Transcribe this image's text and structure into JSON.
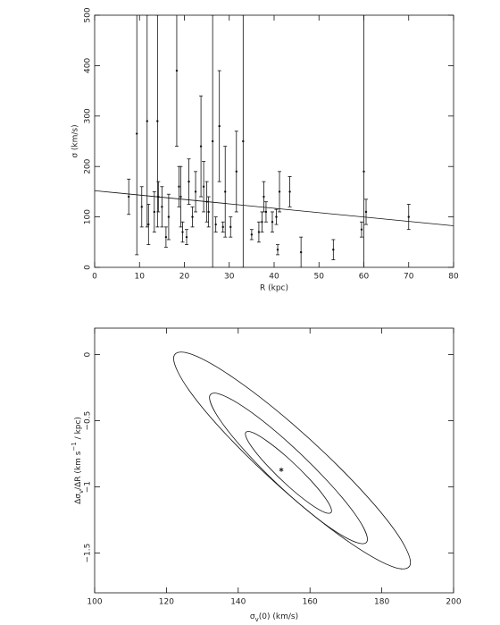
{
  "chart_data": [
    {
      "type": "scatter",
      "x_label": "R (kpc)",
      "y_label": "σ (km/s)",
      "xlim": [
        0,
        80
      ],
      "xticks": [
        0,
        10,
        20,
        30,
        40,
        50,
        60,
        70,
        80
      ],
      "ylim": [
        0,
        500
      ],
      "yticks": [
        0,
        100,
        200,
        300,
        400,
        500
      ],
      "x": [
        7.6,
        9.4,
        10.5,
        11.7,
        12.0,
        13.3,
        14.0,
        14.2,
        15.0,
        15.9,
        16.5,
        18.3,
        18.8,
        19.2,
        19.6,
        20.5,
        21.0,
        21.8,
        22.5,
        23.7,
        24.3,
        25.0,
        25.4,
        26.3,
        27.0,
        27.8,
        28.6,
        29.1,
        30.3,
        31.6,
        33.1,
        35.0,
        36.6,
        37.3,
        37.7,
        38.2,
        39.6,
        40.5,
        40.8,
        41.2,
        43.5,
        46.0,
        53.2,
        59.5,
        60.0,
        60.5,
        70.0
      ],
      "values": [
        140,
        265,
        120,
        290,
        85,
        110,
        290,
        140,
        120,
        60,
        100,
        390,
        160,
        140,
        70,
        60,
        170,
        100,
        150,
        240,
        160,
        130,
        110,
        250,
        85,
        280,
        80,
        150,
        80,
        190,
        250,
        65,
        70,
        90,
        140,
        110,
        90,
        100,
        35,
        150,
        150,
        30,
        35,
        75,
        190,
        110,
        100
      ],
      "errors": [
        35,
        240,
        40,
        210,
        40,
        40,
        210,
        30,
        40,
        20,
        45,
        150,
        40,
        60,
        20,
        15,
        45,
        20,
        40,
        100,
        50,
        40,
        30,
        250,
        15,
        110,
        10,
        90,
        20,
        80,
        250,
        10,
        20,
        20,
        30,
        20,
        20,
        15,
        10,
        40,
        30,
        30,
        20,
        15,
        310,
        25,
        25
      ],
      "fit": {
        "x": [
          0,
          80
        ],
        "values": [
          152,
          82.4
        ]
      }
    },
    {
      "type": "contour",
      "x_label": [
        {
          "text": "σ"
        },
        {
          "text": "v",
          "shift": "sub"
        },
        {
          "text": "(0) (km/s)"
        }
      ],
      "y_label": [
        {
          "text": "Δσ"
        },
        {
          "text": "v",
          "shift": "sub"
        },
        {
          "text": "/ΔR (km s"
        },
        {
          "text": "−1",
          "shift": "super"
        },
        {
          "text": " / kpc)"
        }
      ],
      "xlim": [
        100,
        200
      ],
      "xticks": [
        100,
        120,
        140,
        160,
        180,
        200
      ],
      "ylim": [
        -1.8,
        0.2
      ],
      "yticks": [
        {
          "value": -1.5,
          "label": "−1.5"
        },
        {
          "value": -1,
          "label": "−1"
        },
        {
          "value": -0.5,
          "label": "−0.5"
        },
        0
      ],
      "contours": [
        {
          "x": [
            188,
            183.6,
            171.5,
            155,
            138.5,
            126.4,
            122,
            126.4,
            138.5,
            155,
            171.5,
            183.6
          ],
          "y": [
            -1.571,
            -1.608,
            -1.428,
            -1.08,
            -0.657,
            -0.273,
            -0.029,
            0.008,
            -0.172,
            -0.52,
            -0.943,
            -1.327
          ]
        },
        {
          "x": [
            176,
            173.1,
            165,
            154,
            143,
            134.9,
            132,
            134.9,
            143,
            154,
            165,
            173.1
          ],
          "y": [
            -1.396,
            -1.421,
            -1.297,
            -1.055,
            -0.761,
            -0.493,
            -0.324,
            -0.299,
            -0.423,
            -0.665,
            -0.959,
            -1.227
          ]
        },
        {
          "x": [
            166,
            164.4,
            160,
            154,
            148,
            143.6,
            142,
            143.6,
            148,
            154,
            160,
            164.4
          ],
          "y": [
            -1.181,
            -1.195,
            -1.127,
            -0.996,
            -0.836,
            -0.691,
            -0.599,
            -0.585,
            -0.653,
            -0.784,
            -0.944,
            -1.089
          ]
        }
      ],
      "point": {
        "x": 152,
        "y": -0.87
      }
    }
  ]
}
